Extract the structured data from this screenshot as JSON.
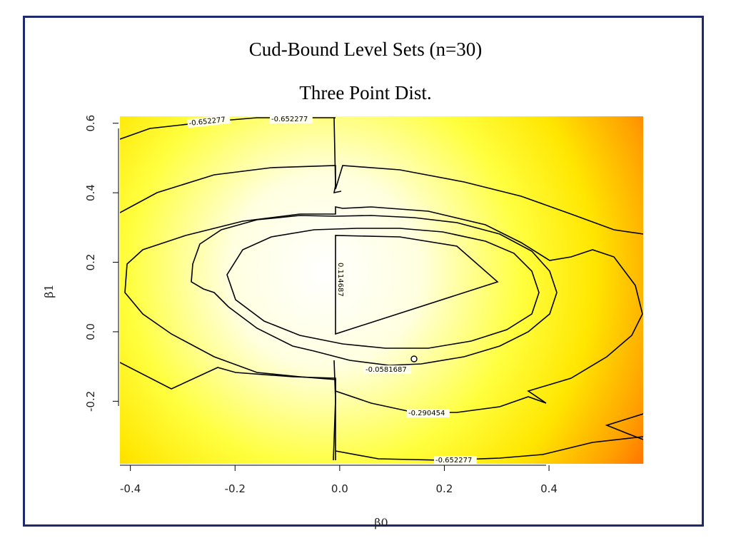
{
  "chart_data": {
    "type": "heatmap",
    "title": "Cud-Bound Level Sets (n=30)",
    "subtitle": "Three Point Dist.",
    "xlabel": "β0",
    "ylabel": "β1",
    "xlim": [
      -0.42,
      0.58
    ],
    "ylim": [
      -0.38,
      0.62
    ],
    "x_ticks": [
      -0.4,
      -0.2,
      0.0,
      0.2,
      0.4
    ],
    "x_tick_labels": [
      "-0.4",
      "-0.2",
      "0.0",
      "0.2",
      "0.4"
    ],
    "y_ticks": [
      -0.2,
      0.0,
      0.2,
      0.4,
      0.6
    ],
    "y_tick_labels": [
      "-0.2",
      "0.0",
      "0.2",
      "0.4",
      "0.6"
    ],
    "colors": {
      "low": "#ffffff",
      "mid": "#ffff00",
      "high": "#ff0000",
      "frame": "#1f2a6e"
    },
    "contour_levels": [
      {
        "label": "0.114687",
        "value": 0.114687
      },
      {
        "label": "-0.0581687",
        "value": -0.0581687
      },
      {
        "label": "-0.290454",
        "value": -0.290454
      },
      {
        "label": "-0.652277",
        "value": -0.652277
      }
    ],
    "contour_label_texts": [
      "0.114687",
      "-0.0581687",
      "-0.290454",
      "-0.652277",
      "-0.652277",
      "-0.652277"
    ]
  }
}
